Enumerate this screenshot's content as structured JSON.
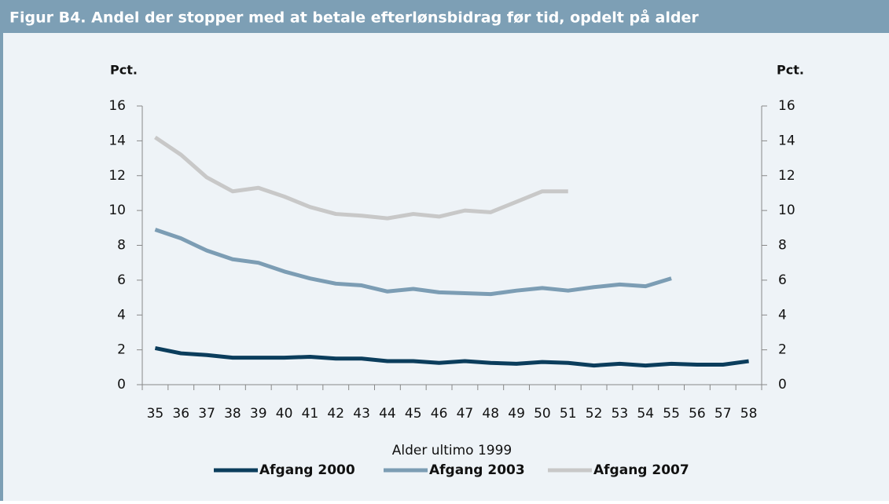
{
  "chart_data": {
    "type": "line",
    "title": "Figur B4. Andel der stopper med at betale efterlønsbidrag før tid, opdelt på alder",
    "y_label": "Pct.",
    "y2_label": "Pct.",
    "x_label": "Alder ultimo 1999",
    "categories": [
      "35",
      "36",
      "37",
      "38",
      "39",
      "40",
      "41",
      "42",
      "43",
      "44",
      "45",
      "46",
      "47",
      "48",
      "49",
      "50",
      "51",
      "52",
      "53",
      "54",
      "55",
      "56",
      "57",
      "58"
    ],
    "series": [
      {
        "name": "Afgang 2000",
        "color": "#0b3d5c",
        "values": [
          2.1,
          1.8,
          1.7,
          1.55,
          1.55,
          1.55,
          1.6,
          1.5,
          1.5,
          1.35,
          1.35,
          1.25,
          1.35,
          1.25,
          1.2,
          1.3,
          1.25,
          1.1,
          1.2,
          1.1,
          1.2,
          1.15,
          1.15,
          1.35
        ]
      },
      {
        "name": "Afgang 2003",
        "color": "#7c9db4",
        "values": [
          8.9,
          8.4,
          7.7,
          7.2,
          7.0,
          6.5,
          6.1,
          5.8,
          5.7,
          5.35,
          5.5,
          5.3,
          5.25,
          5.2,
          5.4,
          5.55,
          5.4,
          5.6,
          5.75,
          5.65,
          6.1,
          null,
          null,
          null
        ]
      },
      {
        "name": "Afgang 2007",
        "color": "#c8c8c8",
        "values": [
          14.2,
          13.2,
          11.9,
          11.1,
          11.3,
          10.8,
          10.2,
          9.8,
          9.7,
          9.55,
          9.8,
          9.65,
          10.0,
          9.9,
          10.5,
          11.1,
          11.1,
          null,
          null,
          null,
          null,
          null,
          null,
          null
        ]
      }
    ],
    "ylim": [
      0,
      16
    ],
    "yticks": [
      0,
      2,
      4,
      6,
      8,
      10,
      12,
      14,
      16
    ],
    "y2lim": [
      0,
      16
    ],
    "y2ticks": [
      0,
      2,
      4,
      6,
      8,
      10,
      12,
      14,
      16
    ],
    "legend": "bottom"
  }
}
